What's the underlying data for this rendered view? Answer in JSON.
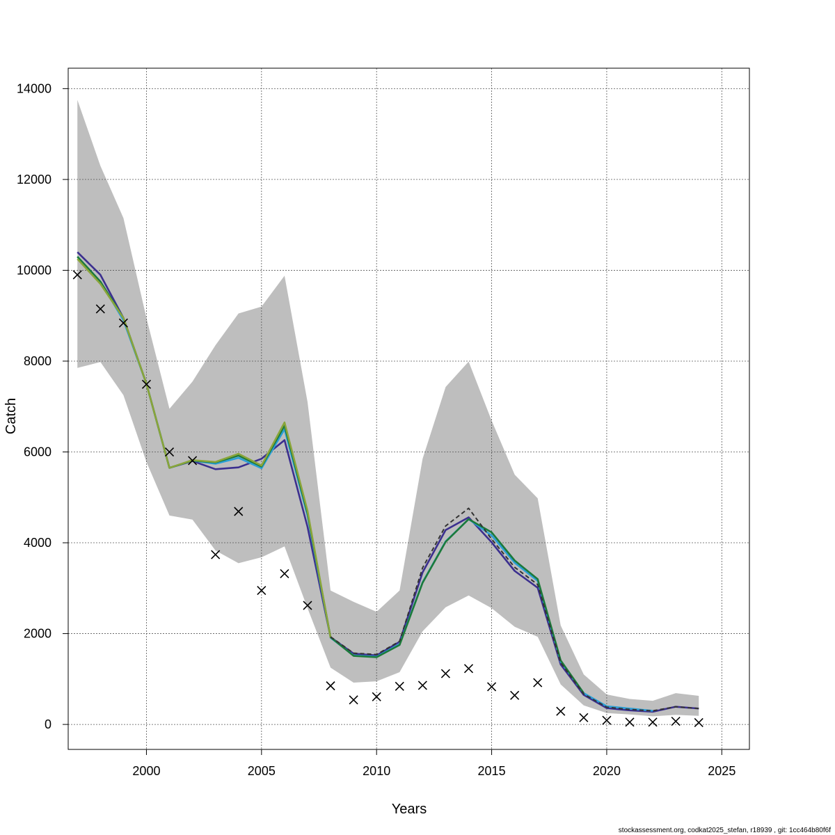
{
  "chart_data": {
    "type": "line",
    "xlabel": "Years",
    "ylabel": "Catch",
    "xlim": [
      1996.6,
      2026.2
    ],
    "ylim": [
      -550,
      14450
    ],
    "grid": true,
    "x_ticks": [
      2000,
      2005,
      2010,
      2015,
      2020,
      2025
    ],
    "x_tick_labels": [
      "2000",
      "2005",
      "2010",
      "2015",
      "2020",
      "2025"
    ],
    "y_ticks": [
      0,
      2000,
      4000,
      6000,
      8000,
      10000,
      12000,
      14000
    ],
    "y_tick_labels": [
      "0",
      "2000",
      "4000",
      "6000",
      "8000",
      "10000",
      "12000",
      "14000"
    ],
    "years": [
      1997,
      1998,
      1999,
      2000,
      2001,
      2002,
      2003,
      2004,
      2005,
      2006,
      2007,
      2008,
      2009,
      2010,
      2011,
      2012,
      2013,
      2014,
      2015,
      2016,
      2017,
      2018,
      2019,
      2020,
      2021,
      2022,
      2023,
      2024
    ],
    "band": {
      "color": "#bebebe",
      "upper": [
        13750,
        12300,
        11150,
        8950,
        6950,
        7550,
        8350,
        9050,
        9200,
        9880,
        7100,
        2950,
        2700,
        2480,
        2950,
        5850,
        7430,
        7990,
        6690,
        5500,
        4980,
        2180,
        1100,
        660,
        560,
        520,
        690,
        630
      ],
      "lower": [
        7850,
        7980,
        7250,
        5780,
        4600,
        4510,
        3830,
        3550,
        3680,
        3920,
        2560,
        1250,
        920,
        950,
        1150,
        2050,
        2580,
        2840,
        2560,
        2150,
        1930,
        880,
        420,
        250,
        220,
        180,
        210,
        190
      ]
    },
    "series": [
      {
        "color": "#3b2f8f",
        "dashed": false,
        "values": [
          10400,
          9900,
          8950,
          7500,
          5650,
          5800,
          5620,
          5660,
          5850,
          6260,
          4350,
          1920,
          1560,
          1520,
          1820,
          3350,
          4280,
          4560,
          4010,
          3380,
          3010,
          1320,
          650,
          360,
          310,
          280,
          390,
          350
        ]
      },
      {
        "color": "#2a9fd6",
        "dashed": false,
        "values": [
          10300,
          9750,
          8900,
          7500,
          5650,
          5810,
          5740,
          5870,
          5640,
          6500,
          4600,
          1910,
          1520,
          1490,
          1770,
          3130,
          4030,
          4520,
          4160,
          3560,
          3160,
          1380,
          690,
          400,
          350,
          300,
          null,
          null
        ]
      },
      {
        "color": "#1c7a3a",
        "dashed": false,
        "values": [
          10300,
          9750,
          8950,
          7500,
          5650,
          5810,
          5770,
          5920,
          5680,
          6580,
          4650,
          1920,
          1510,
          1480,
          1750,
          3120,
          4020,
          4520,
          4230,
          3610,
          3200,
          1410,
          690,
          null,
          null,
          null,
          null,
          null
        ]
      },
      {
        "color": "#8aa53a",
        "dashed": false,
        "values": [
          10250,
          9700,
          8950,
          7500,
          5650,
          5820,
          5780,
          5960,
          5700,
          6650,
          4700,
          1910,
          null,
          null,
          null,
          null,
          null,
          null,
          null,
          null,
          null,
          null,
          null,
          null,
          null,
          null,
          null,
          null
        ]
      },
      {
        "color": "#333333",
        "dashed": true,
        "values": [
          null,
          null,
          null,
          null,
          null,
          null,
          null,
          null,
          null,
          null,
          null,
          1930,
          1570,
          1540,
          1830,
          3450,
          4370,
          4760,
          4080,
          3460,
          3080,
          1360,
          670,
          380,
          330,
          300,
          390,
          350
        ]
      }
    ],
    "observed": {
      "marker": "x",
      "values": [
        9900,
        9150,
        8840,
        7490,
        6000,
        5810,
        3740,
        4690,
        2950,
        3320,
        2620,
        850,
        540,
        610,
        840,
        860,
        1120,
        1230,
        830,
        640,
        920,
        290,
        150,
        90,
        50,
        50,
        70,
        40
      ]
    }
  },
  "footer": {
    "text": "stockassessment.org, codkat2025_stefan, r18939 , git: 1cc464b80f6f"
  }
}
